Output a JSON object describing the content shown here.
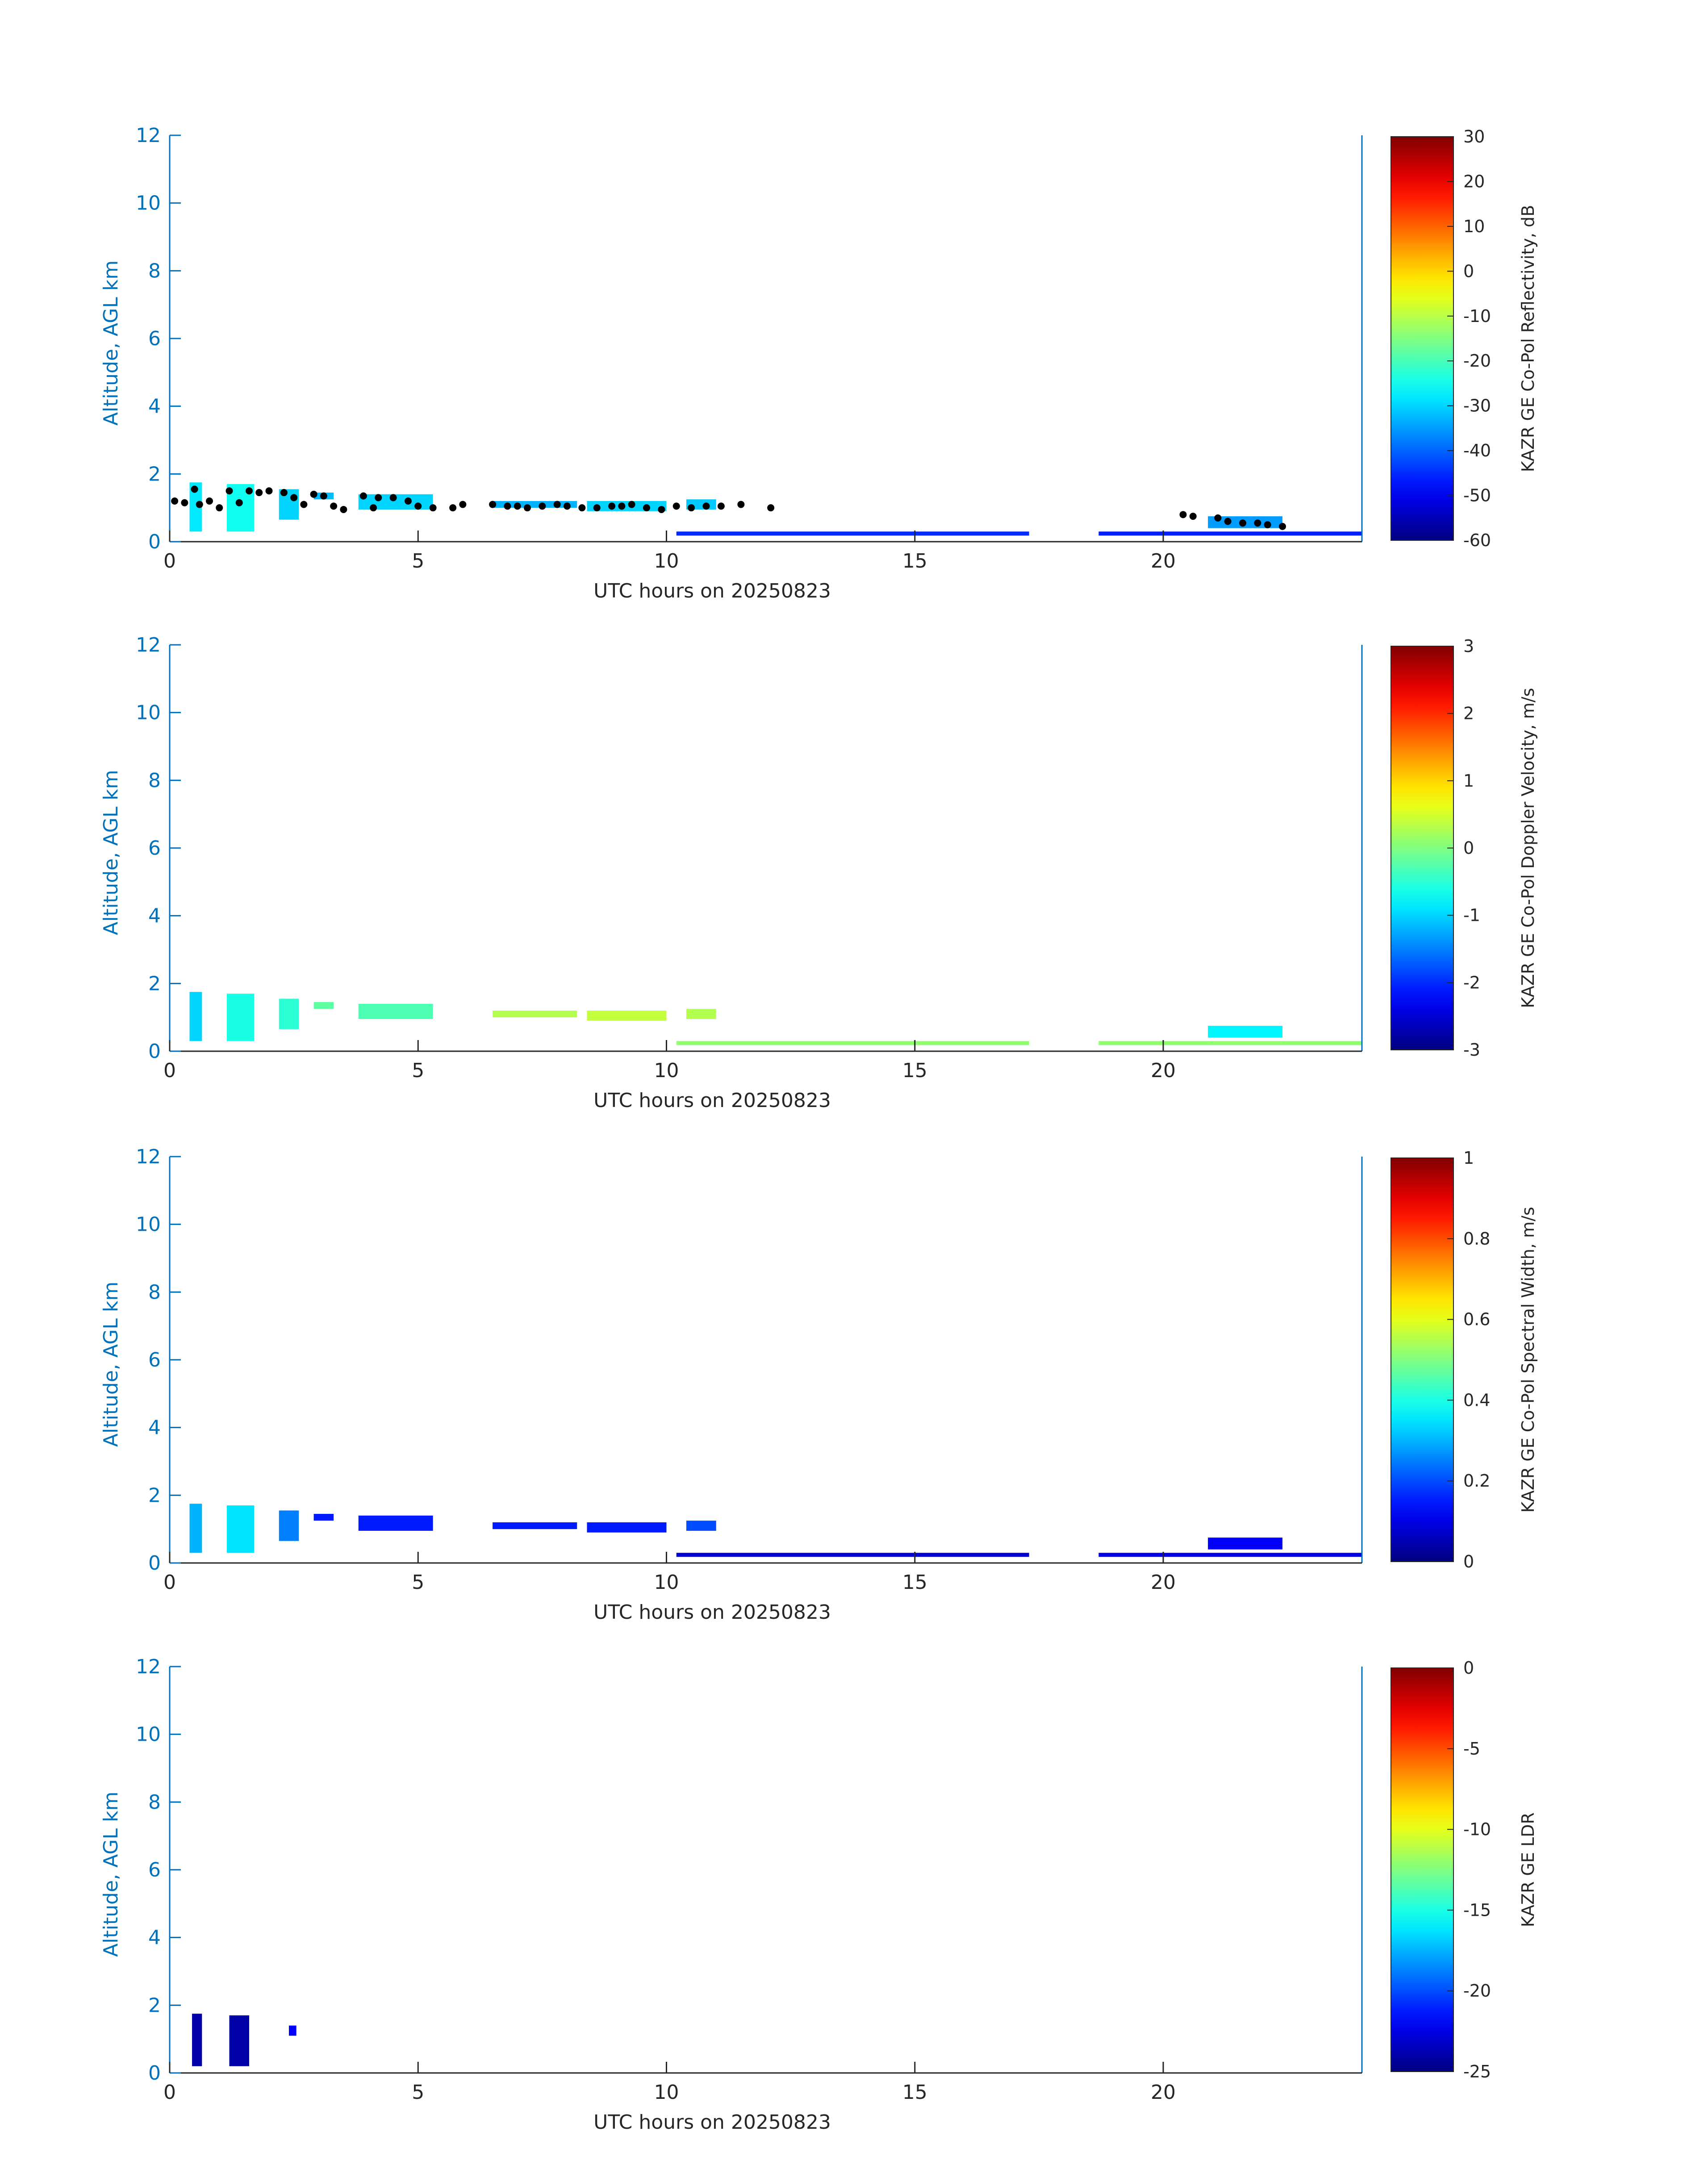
{
  "chart_data": [
    {
      "type": "heatmap",
      "xlabel": "UTC hours on 20250823",
      "ylabel": "Altitude, AGL km",
      "xlim": [
        0,
        24
      ],
      "ylim": [
        0,
        12
      ],
      "xticks": [
        "0",
        "5",
        "10",
        "15",
        "20"
      ],
      "yticks": [
        "0",
        "2",
        "4",
        "6",
        "8",
        "10",
        "12"
      ],
      "colorbar": {
        "label": "KAZR GE Co-Pol Reflectivity, dB",
        "range": [
          -60,
          30
        ],
        "ticks": [
          "30",
          "20",
          "10",
          "0",
          "-10",
          "-20",
          "-30",
          "-40",
          "-50",
          "-60"
        ]
      },
      "echoes": [
        {
          "t0": 0.4,
          "t1": 0.65,
          "h0": 0.3,
          "h1": 1.75,
          "v": -28
        },
        {
          "t0": 1.15,
          "t1": 1.7,
          "h0": 0.3,
          "h1": 1.7,
          "v": -25
        },
        {
          "t0": 2.2,
          "t1": 2.6,
          "h0": 0.65,
          "h1": 1.55,
          "v": -30
        },
        {
          "t0": 2.9,
          "t1": 3.3,
          "h0": 1.25,
          "h1": 1.45,
          "v": -32
        },
        {
          "t0": 3.8,
          "t1": 5.3,
          "h0": 0.95,
          "h1": 1.4,
          "v": -30
        },
        {
          "t0": 6.5,
          "t1": 8.2,
          "h0": 1.0,
          "h1": 1.2,
          "v": -33
        },
        {
          "t0": 8.4,
          "t1": 10.0,
          "h0": 0.9,
          "h1": 1.2,
          "v": -30
        },
        {
          "t0": 10.4,
          "t1": 11.0,
          "h0": 0.95,
          "h1": 1.25,
          "v": -31
        },
        {
          "t0": 10.2,
          "t1": 17.3,
          "h0": 0.18,
          "h1": 0.3,
          "v": -45
        },
        {
          "t0": 18.7,
          "t1": 24.0,
          "h0": 0.18,
          "h1": 0.3,
          "v": -46
        },
        {
          "t0": 20.9,
          "t1": 22.4,
          "h0": 0.4,
          "h1": 0.75,
          "v": -35
        }
      ],
      "cloud_base_points": [
        [
          0.1,
          1.2
        ],
        [
          0.3,
          1.15
        ],
        [
          0.5,
          1.55
        ],
        [
          0.6,
          1.1
        ],
        [
          0.8,
          1.2
        ],
        [
          1.0,
          1.0
        ],
        [
          1.2,
          1.5
        ],
        [
          1.4,
          1.15
        ],
        [
          1.6,
          1.5
        ],
        [
          1.8,
          1.45
        ],
        [
          2.0,
          1.5
        ],
        [
          2.3,
          1.45
        ],
        [
          2.5,
          1.3
        ],
        [
          2.7,
          1.1
        ],
        [
          2.9,
          1.4
        ],
        [
          3.1,
          1.35
        ],
        [
          3.3,
          1.05
        ],
        [
          3.5,
          0.95
        ],
        [
          3.9,
          1.35
        ],
        [
          4.1,
          1.0
        ],
        [
          4.2,
          1.3
        ],
        [
          4.5,
          1.3
        ],
        [
          4.8,
          1.2
        ],
        [
          5.0,
          1.05
        ],
        [
          5.3,
          1.0
        ],
        [
          5.7,
          1.0
        ],
        [
          5.9,
          1.1
        ],
        [
          6.5,
          1.1
        ],
        [
          6.8,
          1.05
        ],
        [
          7.0,
          1.05
        ],
        [
          7.2,
          1.0
        ],
        [
          7.5,
          1.05
        ],
        [
          7.8,
          1.1
        ],
        [
          8.0,
          1.05
        ],
        [
          8.3,
          1.0
        ],
        [
          8.6,
          1.0
        ],
        [
          8.9,
          1.05
        ],
        [
          9.1,
          1.05
        ],
        [
          9.3,
          1.1
        ],
        [
          9.6,
          1.0
        ],
        [
          9.9,
          0.95
        ],
        [
          10.2,
          1.05
        ],
        [
          10.5,
          1.0
        ],
        [
          10.8,
          1.05
        ],
        [
          11.1,
          1.05
        ],
        [
          11.5,
          1.1
        ],
        [
          12.1,
          1.0
        ],
        [
          20.4,
          0.8
        ],
        [
          20.6,
          0.75
        ],
        [
          21.1,
          0.7
        ],
        [
          21.3,
          0.6
        ],
        [
          21.6,
          0.55
        ],
        [
          21.9,
          0.55
        ],
        [
          22.1,
          0.5
        ],
        [
          22.4,
          0.45
        ]
      ]
    },
    {
      "type": "heatmap",
      "xlabel": "UTC hours on 20250823",
      "ylabel": "Altitude, AGL km",
      "xlim": [
        0,
        24
      ],
      "ylim": [
        0,
        12
      ],
      "xticks": [
        "0",
        "5",
        "10",
        "15",
        "20"
      ],
      "yticks": [
        "0",
        "2",
        "4",
        "6",
        "8",
        "10",
        "12"
      ],
      "colorbar": {
        "label": "KAZR GE Co-Pol Doppler Velocity, m/s",
        "range": [
          -3,
          3
        ],
        "ticks": [
          "3",
          "2",
          "1",
          "0",
          "-1",
          "-2",
          "-3"
        ]
      },
      "echoes": [
        {
          "t0": 0.4,
          "t1": 0.65,
          "h0": 0.3,
          "h1": 1.75,
          "v": -1.0
        },
        {
          "t0": 1.15,
          "t1": 1.7,
          "h0": 0.3,
          "h1": 1.7,
          "v": -0.6
        },
        {
          "t0": 2.2,
          "t1": 2.6,
          "h0": 0.65,
          "h1": 1.55,
          "v": -0.5
        },
        {
          "t0": 2.9,
          "t1": 3.3,
          "h0": 1.25,
          "h1": 1.45,
          "v": -0.2
        },
        {
          "t0": 3.8,
          "t1": 5.3,
          "h0": 0.95,
          "h1": 1.4,
          "v": -0.3
        },
        {
          "t0": 6.5,
          "t1": 8.2,
          "h0": 1.0,
          "h1": 1.2,
          "v": 0.3
        },
        {
          "t0": 8.4,
          "t1": 10.0,
          "h0": 0.9,
          "h1": 1.2,
          "v": 0.4
        },
        {
          "t0": 10.4,
          "t1": 11.0,
          "h0": 0.95,
          "h1": 1.25,
          "v": 0.3
        },
        {
          "t0": 10.2,
          "t1": 17.3,
          "h0": 0.18,
          "h1": 0.3,
          "v": 0.1
        },
        {
          "t0": 18.7,
          "t1": 24.0,
          "h0": 0.18,
          "h1": 0.3,
          "v": 0.1
        },
        {
          "t0": 20.9,
          "t1": 22.4,
          "h0": 0.4,
          "h1": 0.75,
          "v": -0.8
        }
      ]
    },
    {
      "type": "heatmap",
      "xlabel": "UTC hours on 20250823",
      "ylabel": "Altitude, AGL km",
      "xlim": [
        0,
        24
      ],
      "ylim": [
        0,
        12
      ],
      "xticks": [
        "0",
        "5",
        "10",
        "15",
        "20"
      ],
      "yticks": [
        "0",
        "2",
        "4",
        "6",
        "8",
        "10",
        "12"
      ],
      "colorbar": {
        "label": "KAZR GE Co-Pol Spectral Width, m/s",
        "range": [
          0,
          1
        ],
        "ticks": [
          "1",
          "0.8",
          "0.6",
          "0.4",
          "0.2",
          "0"
        ]
      },
      "echoes": [
        {
          "t0": 0.4,
          "t1": 0.65,
          "h0": 0.3,
          "h1": 1.75,
          "v": 0.3
        },
        {
          "t0": 1.15,
          "t1": 1.7,
          "h0": 0.3,
          "h1": 1.7,
          "v": 0.35
        },
        {
          "t0": 2.2,
          "t1": 2.6,
          "h0": 0.65,
          "h1": 1.55,
          "v": 0.25
        },
        {
          "t0": 2.9,
          "t1": 3.3,
          "h0": 1.25,
          "h1": 1.45,
          "v": 0.15
        },
        {
          "t0": 3.8,
          "t1": 5.3,
          "h0": 0.95,
          "h1": 1.4,
          "v": 0.15
        },
        {
          "t0": 6.5,
          "t1": 8.2,
          "h0": 1.0,
          "h1": 1.2,
          "v": 0.15
        },
        {
          "t0": 8.4,
          "t1": 10.0,
          "h0": 0.9,
          "h1": 1.2,
          "v": 0.15
        },
        {
          "t0": 10.4,
          "t1": 11.0,
          "h0": 0.95,
          "h1": 1.25,
          "v": 0.2
        },
        {
          "t0": 10.2,
          "t1": 17.3,
          "h0": 0.18,
          "h1": 0.3,
          "v": 0.08
        },
        {
          "t0": 18.7,
          "t1": 24.0,
          "h0": 0.18,
          "h1": 0.3,
          "v": 0.1
        },
        {
          "t0": 20.9,
          "t1": 22.4,
          "h0": 0.4,
          "h1": 0.75,
          "v": 0.12
        }
      ]
    },
    {
      "type": "heatmap",
      "xlabel": "UTC hours on 20250823",
      "ylabel": "Altitude, AGL km",
      "xlim": [
        0,
        24
      ],
      "ylim": [
        0,
        12
      ],
      "xticks": [
        "0",
        "5",
        "10",
        "15",
        "20"
      ],
      "yticks": [
        "0",
        "2",
        "4",
        "6",
        "8",
        "10",
        "12"
      ],
      "colorbar": {
        "label": "KAZR GE LDR",
        "range": [
          -25,
          0
        ],
        "ticks": [
          "0",
          "-5",
          "-10",
          "-15",
          "-20",
          "-25"
        ]
      },
      "echoes": [
        {
          "t0": 0.45,
          "t1": 0.65,
          "h0": 0.2,
          "h1": 1.75,
          "v": -24
        },
        {
          "t0": 1.2,
          "t1": 1.6,
          "h0": 0.2,
          "h1": 1.7,
          "v": -24
        },
        {
          "t0": 2.4,
          "t1": 2.55,
          "h0": 1.1,
          "h1": 1.4,
          "v": -22
        }
      ]
    }
  ]
}
